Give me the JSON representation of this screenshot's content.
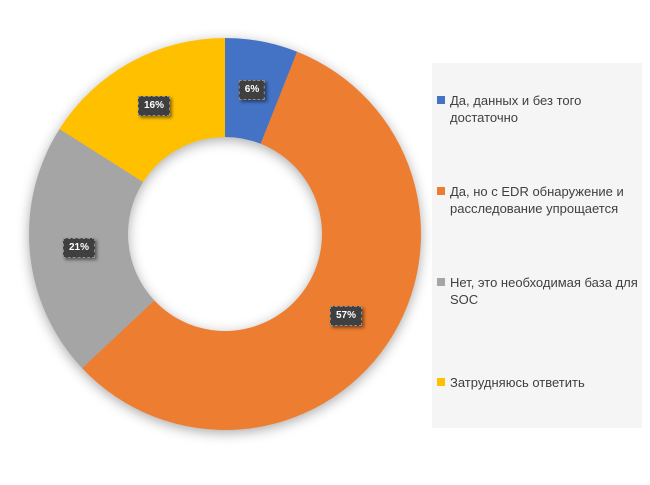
{
  "chart_data": {
    "type": "pie",
    "subtype": "donut",
    "title": "",
    "categories": [
      "Да, данных и без того достаточно",
      "Да, но с EDR обнаружение и расследование упрощается",
      "Нет, это необходимая база для SOC",
      "Затрудняюсь ответить"
    ],
    "values": [
      6,
      57,
      21,
      16
    ],
    "data_labels": [
      "6%",
      "57%",
      "21%",
      "16%"
    ],
    "colors": [
      "#4472c4",
      "#ed7d31",
      "#a5a5a5",
      "#ffc000"
    ],
    "start_angle_deg": 0,
    "direction": "clockwise",
    "hole_ratio": 0.495,
    "legend_position": "right",
    "legend_background": "#f5f5f5",
    "data_label_background": "#3a3a3a",
    "data_label_text_color": "#ffffff",
    "background": "#ffffff"
  },
  "legend": {
    "items": [
      {
        "label": "Да, данных и без того достаточно",
        "color": "#4472c4"
      },
      {
        "label": "Да, но с EDR обнаружение и расследование упрощается",
        "color": "#ed7d31"
      },
      {
        "label": "Нет, это необходимая база для SOC",
        "color": "#a5a5a5"
      },
      {
        "label": "Затрудняюсь ответить",
        "color": "#ffc000"
      }
    ]
  }
}
